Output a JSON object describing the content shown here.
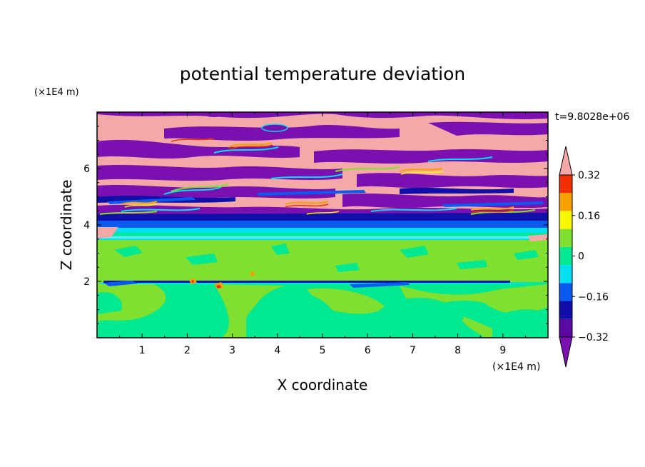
{
  "chart_data": {
    "type": "heatmap",
    "title": "potential temperature deviation",
    "xlabel": "X coordinate",
    "ylabel": "Z coordinate",
    "x_unit": "(×1E4 m)",
    "y_unit": "(×1E4 m)",
    "time_label": "t=9.8028e+06",
    "xlim": [
      0,
      10
    ],
    "ylim": [
      0,
      8
    ],
    "x_ticks": [
      "1",
      "2",
      "3",
      "4",
      "5",
      "6",
      "7",
      "8",
      "9"
    ],
    "y_ticks": [
      "2",
      "4",
      "6"
    ],
    "colorbar": {
      "levels": [
        -0.4,
        -0.32,
        -0.24,
        -0.16,
        -0.08,
        0,
        0.08,
        0.16,
        0.24,
        0.32,
        0.4
      ],
      "labels": [
        "0.32",
        "0.16",
        "0",
        "−0.16",
        "−0.32"
      ],
      "label_values": [
        0.32,
        0.16,
        0,
        -0.16,
        -0.32
      ],
      "colors": [
        "#7a10b0",
        "#5a0aa0",
        "#1010a8",
        "#0a5af0",
        "#00e0f0",
        "#00e890",
        "#80e030",
        "#f8f800",
        "#f8a000",
        "#f03000",
        "#f4a8a8"
      ],
      "extend": "both"
    },
    "regions": [
      {
        "z_range": [
          0,
          3.6
        ],
        "values": [
          -0.04,
          0.04
        ],
        "description": "lower layer dominated by green (≈0)"
      },
      {
        "z_range": [
          3.6,
          4.0
        ],
        "values": [
          -0.2,
          -0.04
        ],
        "description": "cyan/blue transition band"
      },
      {
        "z_range": [
          4.0,
          8.0
        ],
        "values": [
          -0.4,
          0.4
        ],
        "description": "alternating pink (>0.32) and purple (<−0.32) streaks"
      }
    ]
  }
}
